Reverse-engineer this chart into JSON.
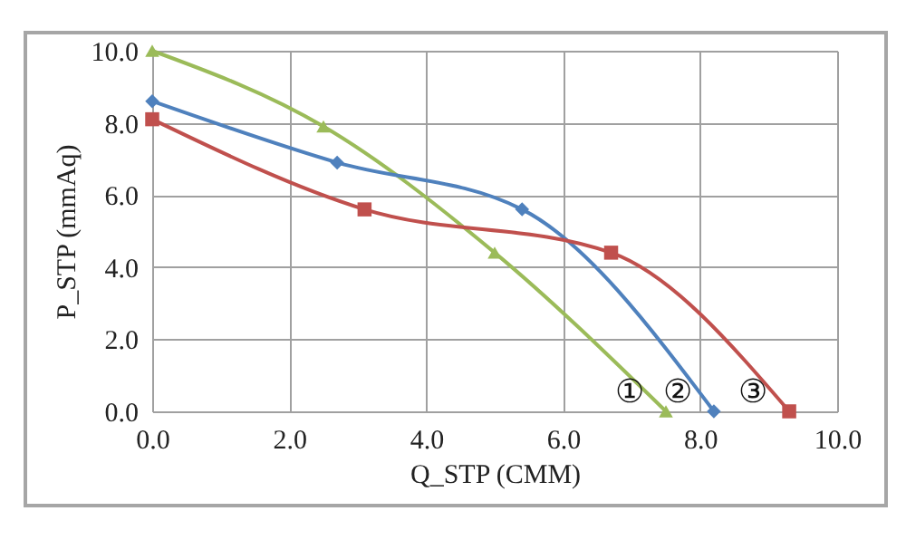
{
  "chart_data": {
    "type": "line",
    "xlabel": "Q_STP (CMM)",
    "ylabel": "P_STP (mmAq)",
    "xlim": [
      0,
      10
    ],
    "ylim": [
      0,
      10
    ],
    "xticks": [
      {
        "value": 0,
        "label": "0.0"
      },
      {
        "value": 2,
        "label": "2.0"
      },
      {
        "value": 4,
        "label": "4.0"
      },
      {
        "value": 6,
        "label": "6.0"
      },
      {
        "value": 8,
        "label": "8.0"
      },
      {
        "value": 10,
        "label": "10.0"
      }
    ],
    "yticks": [
      {
        "value": 0,
        "label": "0.0"
      },
      {
        "value": 2,
        "label": "2.0"
      },
      {
        "value": 4,
        "label": "4.0"
      },
      {
        "value": 6,
        "label": "6.0"
      },
      {
        "value": 8,
        "label": "8.0"
      },
      {
        "value": 10,
        "label": "10.0"
      }
    ],
    "grid": true,
    "line_style": "solid",
    "series": [
      {
        "name": "①",
        "color": "#9bbb59",
        "marker": "triangle",
        "x": [
          0,
          2.5,
          5.0,
          7.5
        ],
        "values": [
          10.0,
          7.9,
          4.4,
          0.0
        ]
      },
      {
        "name": "②",
        "color": "#4f81bd",
        "marker": "diamond",
        "x": [
          0,
          2.7,
          5.4,
          8.2
        ],
        "values": [
          8.6,
          6.9,
          5.6,
          0.0
        ]
      },
      {
        "name": "③",
        "color": "#c0504d",
        "marker": "square",
        "x": [
          0,
          3.1,
          6.7,
          9.3
        ],
        "values": [
          8.1,
          5.6,
          4.4,
          0.0
        ]
      }
    ]
  }
}
